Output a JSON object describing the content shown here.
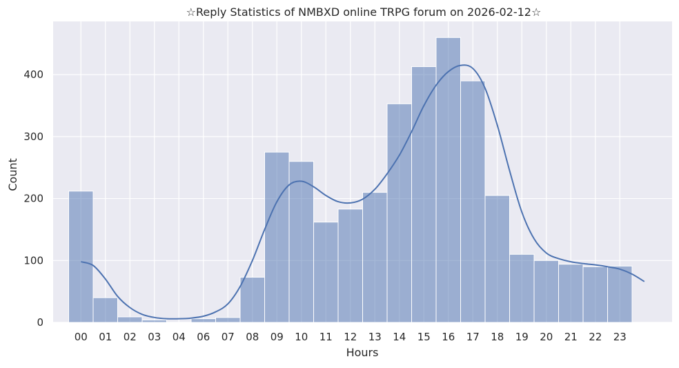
{
  "chart_data": {
    "type": "bar",
    "title": "☆Reply Statistics of NMBXD online TRPG forum on 2026-02-12☆",
    "xlabel": "Hours",
    "ylabel": "Count",
    "categories": [
      "00",
      "01",
      "02",
      "03",
      "04",
      "06",
      "07",
      "08",
      "09",
      "10",
      "11",
      "12",
      "13",
      "14",
      "15",
      "16",
      "17",
      "18",
      "19",
      "20",
      "21",
      "22",
      "23"
    ],
    "values": [
      212,
      40,
      9,
      4,
      0,
      6,
      8,
      73,
      275,
      260,
      162,
      183,
      210,
      353,
      413,
      460,
      390,
      205,
      110,
      100,
      94,
      90,
      91
    ],
    "yticks": [
      0,
      100,
      200,
      300,
      400
    ],
    "ylim": [
      0,
      486
    ],
    "grid": true,
    "bar_color": "#4c72b0",
    "bar_opacity": 0.5,
    "background_color": "#eaeaf2",
    "kde": {
      "color": "#4c72b0",
      "x": [
        0,
        0.5,
        1,
        1.5,
        2,
        2.5,
        3,
        3.5,
        4,
        4.5,
        5,
        5.5,
        6,
        6.5,
        7,
        7.5,
        8,
        8.5,
        9,
        9.5,
        10,
        10.5,
        11,
        11.5,
        12,
        12.5,
        13,
        13.5,
        14,
        14.5,
        15,
        15.5,
        16,
        16.5,
        17,
        17.5,
        18,
        18.5,
        19,
        19.5,
        20,
        20.5,
        21,
        21.5,
        22,
        22.5,
        23
      ],
      "y": [
        98,
        92,
        70,
        42,
        24,
        13,
        8,
        6,
        6,
        7,
        10,
        17,
        30,
        58,
        100,
        150,
        195,
        222,
        228,
        219,
        205,
        195,
        193,
        199,
        215,
        240,
        270,
        308,
        350,
        383,
        405,
        415,
        410,
        378,
        318,
        245,
        178,
        135,
        112,
        103,
        98,
        95,
        93,
        90,
        86,
        78,
        66
      ]
    }
  }
}
